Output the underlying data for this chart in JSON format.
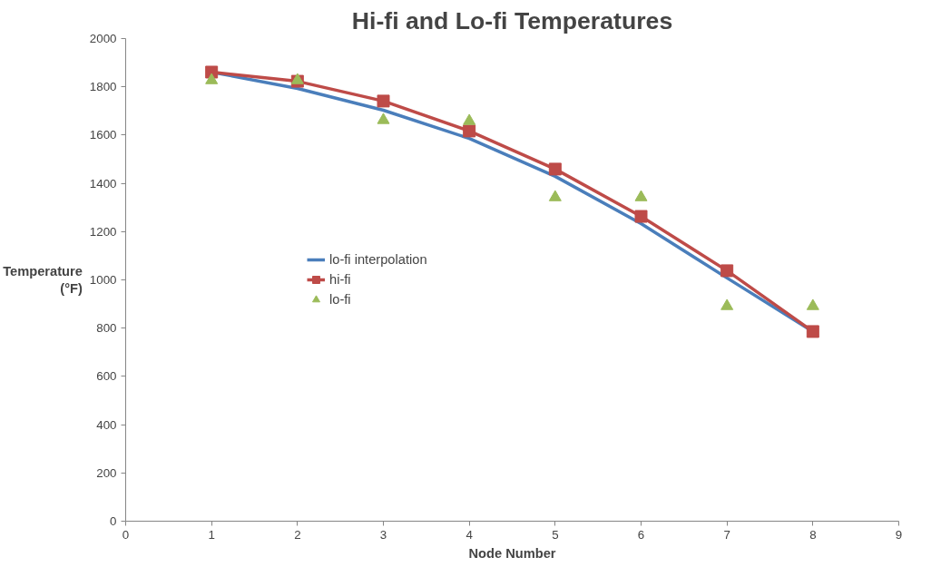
{
  "chart_data": {
    "type": "line",
    "title": "Hi-fi and Lo-fi Temperatures",
    "xlabel": "Node Number",
    "ylabel": "Temperature\n(°F)",
    "x": [
      1,
      2,
      3,
      4,
      5,
      6,
      7,
      8
    ],
    "series": [
      {
        "name": "lo-fi interpolation",
        "color": "#4a7ebb",
        "marker": "none",
        "values": [
          1861,
          1793,
          1703,
          1586,
          1429,
          1233,
          1008,
          786
        ]
      },
      {
        "name": "hi-fi",
        "color": "#be4b48",
        "marker": "square",
        "values": [
          1861,
          1823,
          1741,
          1617,
          1459,
          1263,
          1038,
          786
        ]
      },
      {
        "name": "lo-fi",
        "type": "scatter",
        "color": "#9bbb59",
        "marker": "triangle",
        "values": [
          1827,
          1827,
          1662,
          1658,
          1342,
          1342,
          891,
          891
        ]
      }
    ],
    "xlim": [
      0,
      9
    ],
    "xticks": [
      0,
      1,
      2,
      3,
      4,
      5,
      6,
      7,
      8,
      9
    ],
    "ylim": [
      0,
      2000
    ],
    "yticks": [
      0,
      200,
      400,
      600,
      800,
      1000,
      1200,
      1400,
      1600,
      1800,
      2000
    ],
    "grid": false,
    "legend": "left",
    "line_style": "solid"
  }
}
